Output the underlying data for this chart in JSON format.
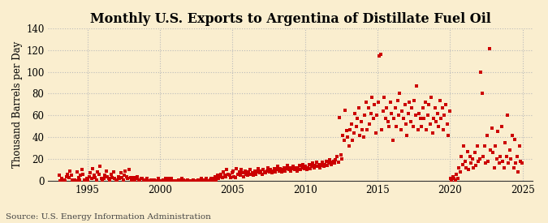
{
  "title": "Monthly U.S. Exports to Argentina of Distillate Fuel Oil",
  "ylabel": "Thousand Barrels per Day",
  "source": "Source: U.S. Energy Information Administration",
  "ylim": [
    0,
    140
  ],
  "yticks": [
    0,
    20,
    40,
    60,
    80,
    100,
    120,
    140
  ],
  "xlim_start": 1992.3,
  "xlim_end": 2025.7,
  "xticks": [
    1995,
    2000,
    2005,
    2010,
    2015,
    2020,
    2025
  ],
  "marker_color": "#cc0000",
  "marker_size": 9,
  "bg_color": "#faeecf",
  "grid_color": "#bbbbbb",
  "title_fontsize": 11.5,
  "label_fontsize": 8.5,
  "source_fontsize": 7.5,
  "data_x": [
    1993.04,
    1993.12,
    1993.21,
    1993.29,
    1993.38,
    1993.46,
    1993.54,
    1993.62,
    1993.71,
    1993.79,
    1993.88,
    1993.96,
    1994.04,
    1994.12,
    1994.21,
    1994.29,
    1994.38,
    1994.46,
    1994.54,
    1994.62,
    1994.71,
    1994.79,
    1994.88,
    1994.96,
    1995.04,
    1995.12,
    1995.21,
    1995.29,
    1995.38,
    1995.46,
    1995.54,
    1995.62,
    1995.71,
    1995.79,
    1995.88,
    1995.96,
    1996.04,
    1996.12,
    1996.21,
    1996.29,
    1996.38,
    1996.46,
    1996.54,
    1996.62,
    1996.71,
    1996.79,
    1996.88,
    1996.96,
    1997.04,
    1997.12,
    1997.21,
    1997.29,
    1997.38,
    1997.46,
    1997.54,
    1997.62,
    1997.71,
    1997.79,
    1997.88,
    1997.96,
    1998.04,
    1998.12,
    1998.21,
    1998.29,
    1998.38,
    1998.46,
    1998.54,
    1998.62,
    1998.71,
    1998.79,
    1998.88,
    1998.96,
    1999.04,
    1999.12,
    1999.21,
    1999.29,
    1999.38,
    1999.46,
    1999.54,
    1999.62,
    1999.71,
    1999.79,
    1999.88,
    1999.96,
    2000.04,
    2000.12,
    2000.21,
    2000.29,
    2000.38,
    2000.46,
    2000.54,
    2000.62,
    2000.71,
    2000.79,
    2000.88,
    2000.96,
    2001.04,
    2001.12,
    2001.21,
    2001.29,
    2001.38,
    2001.46,
    2001.54,
    2001.62,
    2001.71,
    2001.79,
    2001.88,
    2001.96,
    2002.04,
    2002.12,
    2002.21,
    2002.29,
    2002.38,
    2002.46,
    2002.54,
    2002.62,
    2002.71,
    2002.79,
    2002.88,
    2002.96,
    2003.04,
    2003.12,
    2003.21,
    2003.29,
    2003.38,
    2003.46,
    2003.54,
    2003.62,
    2003.71,
    2003.79,
    2003.88,
    2003.96,
    2004.04,
    2004.12,
    2004.21,
    2004.29,
    2004.38,
    2004.46,
    2004.54,
    2004.62,
    2004.71,
    2004.79,
    2004.88,
    2004.96,
    2005.04,
    2005.12,
    2005.21,
    2005.29,
    2005.38,
    2005.46,
    2005.54,
    2005.62,
    2005.71,
    2005.79,
    2005.88,
    2005.96,
    2006.04,
    2006.12,
    2006.21,
    2006.29,
    2006.38,
    2006.46,
    2006.54,
    2006.62,
    2006.71,
    2006.79,
    2006.88,
    2006.96,
    2007.04,
    2007.12,
    2007.21,
    2007.29,
    2007.38,
    2007.46,
    2007.54,
    2007.62,
    2007.71,
    2007.79,
    2007.88,
    2007.96,
    2008.04,
    2008.12,
    2008.21,
    2008.29,
    2008.38,
    2008.46,
    2008.54,
    2008.62,
    2008.71,
    2008.79,
    2008.88,
    2008.96,
    2009.04,
    2009.12,
    2009.21,
    2009.29,
    2009.38,
    2009.46,
    2009.54,
    2009.62,
    2009.71,
    2009.79,
    2009.88,
    2009.96,
    2010.04,
    2010.12,
    2010.21,
    2010.29,
    2010.38,
    2010.46,
    2010.54,
    2010.62,
    2010.71,
    2010.79,
    2010.88,
    2010.96,
    2011.04,
    2011.12,
    2011.21,
    2011.29,
    2011.38,
    2011.46,
    2011.54,
    2011.62,
    2011.71,
    2011.79,
    2011.88,
    2011.96,
    2012.04,
    2012.12,
    2012.21,
    2012.29,
    2012.38,
    2012.46,
    2012.54,
    2012.62,
    2012.71,
    2012.79,
    2012.88,
    2012.96,
    2013.04,
    2013.12,
    2013.21,
    2013.29,
    2013.38,
    2013.46,
    2013.54,
    2013.62,
    2013.71,
    2013.79,
    2013.88,
    2013.96,
    2014.04,
    2014.12,
    2014.21,
    2014.29,
    2014.38,
    2014.46,
    2014.54,
    2014.62,
    2014.71,
    2014.79,
    2014.88,
    2014.96,
    2015.04,
    2015.12,
    2015.21,
    2015.29,
    2015.38,
    2015.46,
    2015.54,
    2015.62,
    2015.71,
    2015.79,
    2015.88,
    2015.96,
    2016.04,
    2016.12,
    2016.21,
    2016.29,
    2016.38,
    2016.46,
    2016.54,
    2016.62,
    2016.71,
    2016.79,
    2016.88,
    2016.96,
    2017.04,
    2017.12,
    2017.21,
    2017.29,
    2017.38,
    2017.46,
    2017.54,
    2017.62,
    2017.71,
    2017.79,
    2017.88,
    2017.96,
    2018.04,
    2018.12,
    2018.21,
    2018.29,
    2018.38,
    2018.46,
    2018.54,
    2018.62,
    2018.71,
    2018.79,
    2018.88,
    2018.96,
    2019.04,
    2019.12,
    2019.21,
    2019.29,
    2019.38,
    2019.46,
    2019.54,
    2019.62,
    2019.71,
    2019.79,
    2019.88,
    2019.96,
    2020.04,
    2020.12,
    2020.21,
    2020.29,
    2020.38,
    2020.46,
    2020.54,
    2020.62,
    2020.71,
    2020.79,
    2020.88,
    2020.96,
    2021.04,
    2021.12,
    2021.21,
    2021.29,
    2021.38,
    2021.46,
    2021.54,
    2021.62,
    2021.71,
    2021.79,
    2021.88,
    2021.96,
    2022.04,
    2022.12,
    2022.21,
    2022.29,
    2022.38,
    2022.46,
    2022.54,
    2022.62,
    2022.71,
    2022.79,
    2022.88,
    2022.96,
    2023.04,
    2023.12,
    2023.21,
    2023.29,
    2023.38,
    2023.46,
    2023.54,
    2023.62,
    2023.71,
    2023.79,
    2023.88,
    2023.96,
    2024.04,
    2024.12,
    2024.21,
    2024.29,
    2024.38,
    2024.46,
    2024.54,
    2024.62,
    2024.71,
    2024.79,
    2024.88,
    2024.96
  ],
  "data_y": [
    5,
    0,
    2,
    0,
    1,
    0,
    4,
    6,
    3,
    9,
    5,
    1,
    0,
    1,
    0,
    8,
    3,
    1,
    5,
    10,
    6,
    1,
    1,
    2,
    1,
    4,
    7,
    2,
    11,
    5,
    3,
    1,
    8,
    6,
    13,
    2,
    1,
    2,
    5,
    9,
    4,
    2,
    1,
    6,
    3,
    8,
    2,
    1,
    0,
    4,
    2,
    7,
    3,
    1,
    5,
    9,
    4,
    2,
    10,
    3,
    0,
    1,
    3,
    0,
    2,
    4,
    1,
    0,
    2,
    2,
    0,
    1,
    0,
    2,
    0,
    0,
    1,
    0,
    0,
    1,
    0,
    0,
    2,
    0,
    0,
    0,
    1,
    0,
    2,
    0,
    2,
    1,
    0,
    2,
    0,
    0,
    0,
    0,
    0,
    1,
    0,
    0,
    2,
    1,
    0,
    0,
    1,
    0,
    0,
    0,
    0,
    1,
    0,
    0,
    0,
    1,
    0,
    0,
    2,
    1,
    0,
    1,
    2,
    0,
    0,
    1,
    2,
    0,
    2,
    4,
    1,
    5,
    2,
    4,
    6,
    3,
    8,
    5,
    4,
    10,
    6,
    5,
    3,
    7,
    9,
    4,
    3,
    11,
    6,
    8,
    5,
    10,
    7,
    4,
    9,
    6,
    5,
    8,
    10,
    6,
    7,
    5,
    9,
    6,
    8,
    11,
    7,
    9,
    6,
    10,
    8,
    7,
    9,
    12,
    8,
    10,
    7,
    9,
    11,
    8,
    10,
    13,
    9,
    11,
    8,
    10,
    12,
    9,
    11,
    14,
    10,
    12,
    9,
    11,
    13,
    10,
    12,
    9,
    11,
    14,
    10,
    12,
    15,
    11,
    13,
    10,
    12,
    15,
    11,
    13,
    16,
    12,
    14,
    17,
    13,
    15,
    12,
    14,
    17,
    13,
    15,
    18,
    14,
    16,
    19,
    15,
    17,
    18,
    16,
    19,
    22,
    17,
    58,
    24,
    20,
    42,
    37,
    65,
    46,
    40,
    32,
    47,
    52,
    37,
    44,
    62,
    50,
    57,
    67,
    42,
    54,
    47,
    40,
    60,
    72,
    47,
    67,
    52,
    62,
    77,
    57,
    70,
    44,
    60,
    72,
    115,
    116,
    47,
    64,
    77,
    57,
    67,
    54,
    50,
    72,
    62,
    37,
    57,
    67,
    50,
    74,
    60,
    80,
    47,
    64,
    57,
    70,
    52,
    42,
    62,
    72,
    54,
    67,
    50,
    74,
    60,
    87,
    47,
    62,
    57,
    50,
    67,
    57,
    72,
    47,
    60,
    70,
    52,
    77,
    44,
    57,
    67,
    54,
    62,
    50,
    74,
    57,
    67,
    47,
    60,
    70,
    52,
    42,
    64,
    2,
    0,
    4,
    2,
    1,
    6,
    2,
    12,
    8,
    22,
    15,
    32,
    18,
    12,
    27,
    10,
    22,
    16,
    20,
    12,
    26,
    14,
    32,
    18,
    20,
    100,
    80,
    22,
    32,
    16,
    42,
    18,
    121,
    28,
    48,
    26,
    12,
    32,
    20,
    45,
    16,
    22,
    50,
    18,
    12,
    35,
    22,
    60,
    16,
    28,
    20,
    42,
    12,
    38,
    16,
    22,
    8,
    32,
    18,
    16
  ]
}
